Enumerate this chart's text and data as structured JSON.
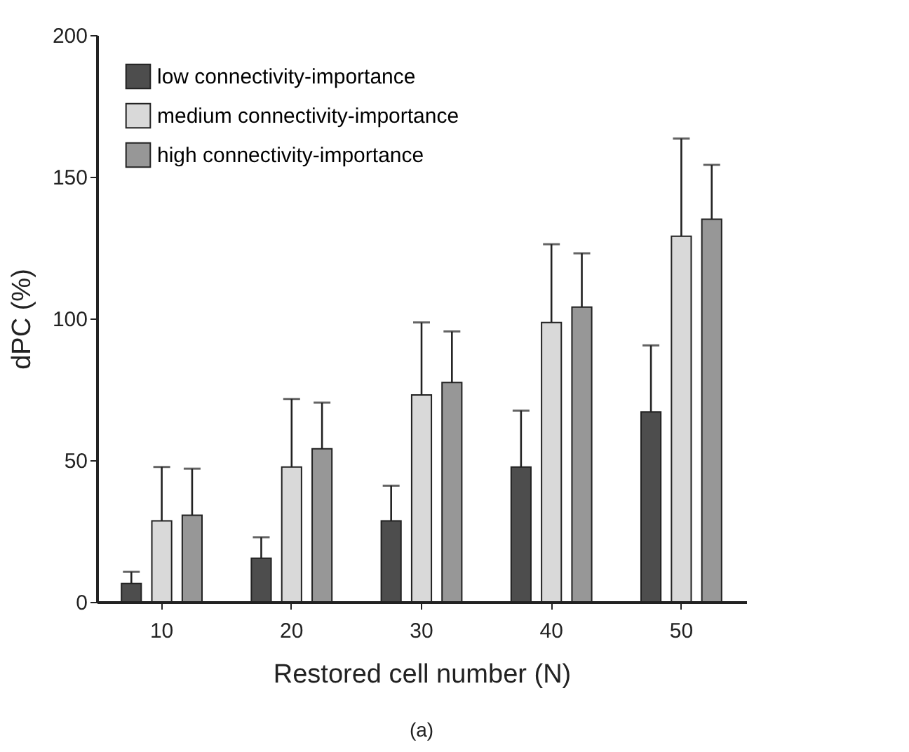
{
  "chart_data": {
    "type": "bar",
    "xlabel": "Restored cell number (N)",
    "ylabel": "dPC (%)",
    "categories": [
      "10",
      "20",
      "30",
      "40",
      "50"
    ],
    "series": [
      {
        "name": "low connectivity-importance",
        "color": "#4d4d4d",
        "values": [
          6.5,
          15.4,
          28.6,
          47.6,
          67
        ],
        "errors": [
          [
            6.5,
            10.6
          ],
          [
            15.4,
            22.8
          ],
          [
            28.6,
            41
          ],
          [
            47.6,
            67.5
          ],
          [
            67,
            90.5
          ]
        ]
      },
      {
        "name": "medium connectivity-importance",
        "color": "#d9d9d9",
        "values": [
          28.6,
          47.6,
          73,
          98.6,
          129
        ],
        "errors": [
          [
            28.6,
            47.6
          ],
          [
            47.6,
            71.6
          ],
          [
            73,
            98.6
          ],
          [
            98.6,
            126.2
          ],
          [
            129,
            163.5
          ]
        ]
      },
      {
        "name": "high connectivity-importance",
        "color": "#979797",
        "values": [
          30.6,
          54,
          77.4,
          104,
          135
        ],
        "errors": [
          [
            30.6,
            47
          ],
          [
            54,
            70.3
          ],
          [
            77.4,
            95.4
          ],
          [
            104,
            123
          ],
          [
            135,
            154.2
          ]
        ]
      }
    ],
    "ylim": [
      0,
      200
    ],
    "yticks": [
      0,
      50,
      100,
      150,
      200
    ],
    "grid": false,
    "legend": "top left",
    "annotations": [
      "(a)"
    ]
  }
}
